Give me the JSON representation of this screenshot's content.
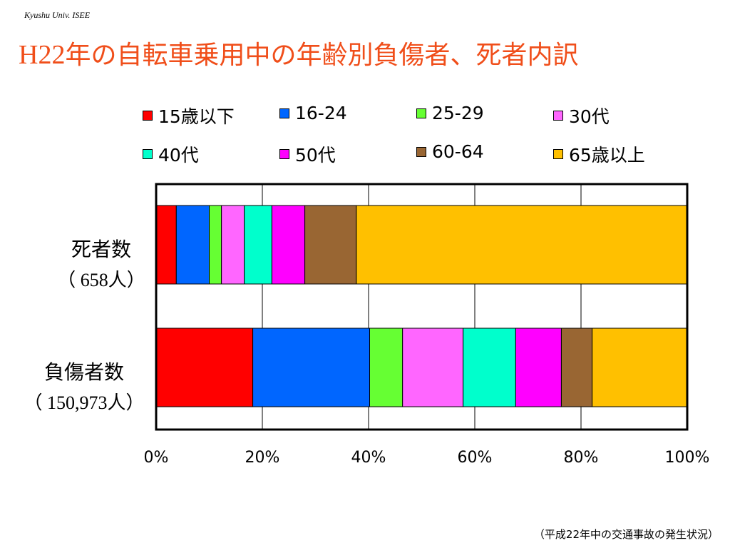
{
  "header_tag": "Kyushu Univ. ISEE",
  "title_prefix": "H22",
  "title_rest": "年の自転車乗用中の年齢別負傷者、死者内訳",
  "footnote": "（平成22年中の交通事故の発生状況）",
  "chart_data": {
    "type": "bar",
    "orientation": "horizontal",
    "stacked": "percent",
    "categories": [
      {
        "name": "死者数",
        "count": "（ 658人）"
      },
      {
        "name": "負傷者数",
        "count": "（ 150,973人）"
      }
    ],
    "series": [
      {
        "name": "15歳以下",
        "color": "#ff0000",
        "values": [
          3.8,
          18.2
        ]
      },
      {
        "name": "16-24",
        "color": "#0066ff",
        "values": [
          6.2,
          22.0
        ]
      },
      {
        "name": "25-29",
        "color": "#66ff33",
        "values": [
          2.3,
          6.2
        ]
      },
      {
        "name": "30代",
        "color": "#ff66ff",
        "values": [
          4.3,
          11.4
        ]
      },
      {
        "name": "40代",
        "color": "#00ffcc",
        "values": [
          5.2,
          9.9
        ]
      },
      {
        "name": "50代",
        "color": "#ff00ff",
        "values": [
          6.2,
          8.6
        ]
      },
      {
        "name": "60-64",
        "color": "#996633",
        "values": [
          9.7,
          5.8
        ]
      },
      {
        "name": "65歳以上",
        "color": "#ffc000",
        "values": [
          62.3,
          17.9
        ]
      }
    ],
    "x_ticks": [
      "0%",
      "20%",
      "40%",
      "60%",
      "80%",
      "100%"
    ],
    "xlim": [
      0,
      100
    ],
    "grid": true,
    "legend_position": "top"
  }
}
